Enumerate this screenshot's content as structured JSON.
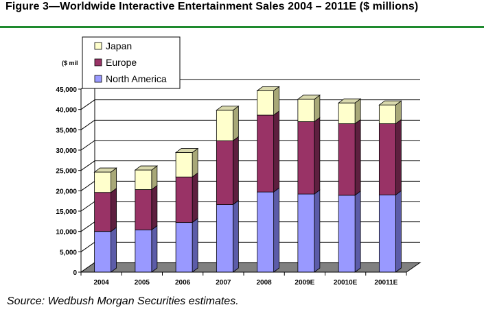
{
  "header": {
    "title": "Figure 3—Worldwide Interactive Entertainment Sales 2004 – 2011E ($ millions)"
  },
  "footer": {
    "source": "Source: Wedbush Morgan Securities estimates."
  },
  "colors": {
    "rule": "#1e8a2e",
    "north_america": "#9999ff",
    "north_america_side": "#5c5ca8",
    "north_america_top": "#b3b3ff",
    "europe": "#993366",
    "europe_side": "#5e1f3f",
    "europe_top": "#b3527f",
    "japan": "#ffffcc",
    "japan_side": "#a8a878",
    "japan_top": "#d9d9ad",
    "floor": "#808080",
    "wall_line": "#000000"
  },
  "chart_data": {
    "type": "bar",
    "stacked": true,
    "title": "Worldwide Interactive Entertainment Sales 2004 – 2011E ($ millions)",
    "xlabel": "",
    "ylabel": "($ millions)",
    "ylabel_visible": "($ mil",
    "ylim": [
      0,
      45000
    ],
    "yticks": [
      0,
      5000,
      10000,
      15000,
      20000,
      25000,
      30000,
      35000,
      40000,
      45000
    ],
    "ytick_labels": [
      "0",
      "5,000",
      "10,000",
      "15,000",
      "20,000",
      "25,000",
      "30,000",
      "35,000",
      "40,000",
      "45,000"
    ],
    "grid": true,
    "legend_position": "top-left",
    "categories": [
      "2004",
      "2005",
      "2006",
      "2007",
      "2008",
      "2009E",
      "20010E",
      "20011E"
    ],
    "series": [
      {
        "name": "North America",
        "color_key": "north_america",
        "values": [
          10000,
          10400,
          12200,
          16600,
          19700,
          19200,
          18900,
          19000
        ]
      },
      {
        "name": "Europe",
        "color_key": "europe",
        "values": [
          9600,
          9900,
          11200,
          15700,
          18900,
          17800,
          17600,
          17500
        ]
      },
      {
        "name": "Japan",
        "color_key": "japan",
        "values": [
          5000,
          4800,
          6000,
          7500,
          6000,
          5500,
          5100,
          4600
        ]
      }
    ],
    "legend_order": [
      "Japan",
      "Europe",
      "North America"
    ]
  }
}
